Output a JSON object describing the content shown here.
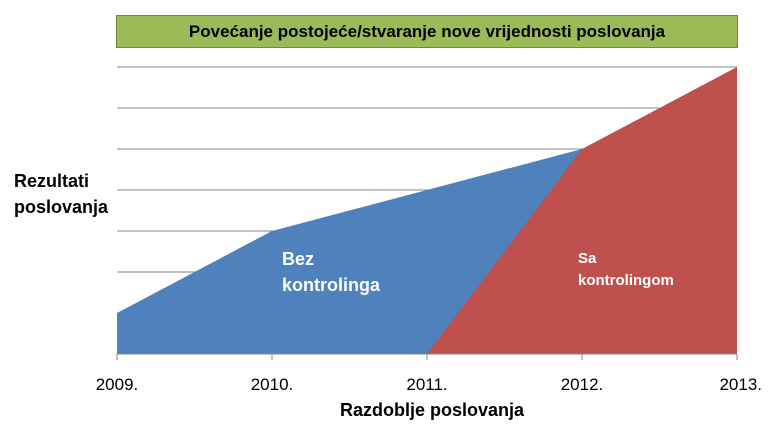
{
  "chart_data": {
    "type": "area",
    "title": "Povećanje postojeće/stvaranje nove vrijednosti poslovanja",
    "xlabel": "Razdoblje poslovanja",
    "ylabel_line1": "Rezultati",
    "ylabel_line2": "poslovanja",
    "categories": [
      "2009.",
      "2010.",
      "2011.",
      "2012.",
      "2013."
    ],
    "ylim": [
      0,
      7
    ],
    "grid": true,
    "series": [
      {
        "name_line1": "Bez",
        "name_line2": "kontrolinga",
        "color": "#4f81bd",
        "values": [
          1,
          3,
          4,
          5,
          null
        ]
      },
      {
        "name_line1": "Sa",
        "name_line2": "kontrolingom",
        "color": "#c0504d",
        "values": [
          null,
          null,
          0,
          5,
          7
        ]
      }
    ]
  }
}
